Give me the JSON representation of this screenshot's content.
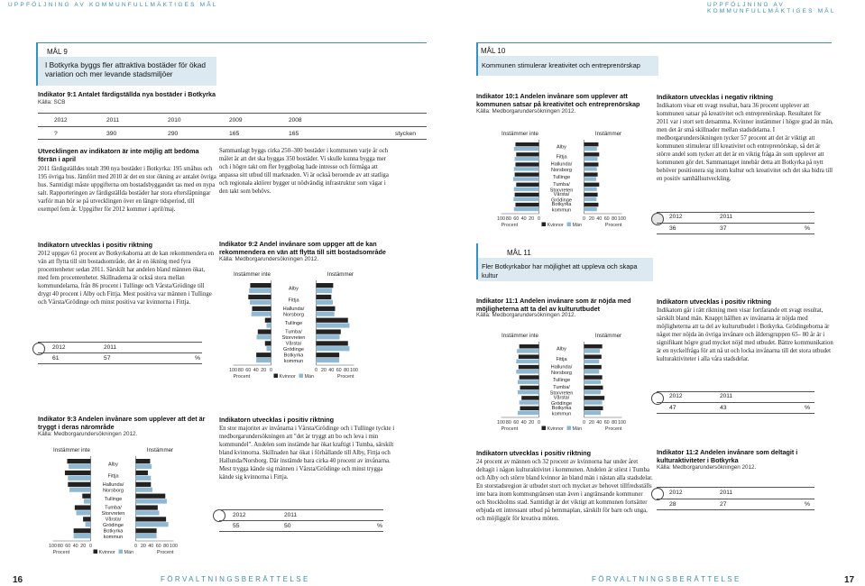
{
  "running_header_left": "UPPFÖLJNING AV KOMMUNFULLMÄKTIGES MÅL",
  "running_header_right": "UPPFÖLJNING AV KOMMUNFULLMÄKTIGES MÅL",
  "running_footer_left": "FÖRVALTNINGSBERÄTTELSE",
  "running_footer_right": "FÖRVALTNINGSBERÄTTELSE",
  "page_left": "16",
  "page_right": "17",
  "mal9": {
    "label": "MÅL 9",
    "text": "I Botkyrka byggs fler attraktiva bostäder för ökad variation och mer levande stadsmiljöer"
  },
  "mal10": {
    "label": "MÅL 10",
    "text": "Kommunen stimulerar kreativitet och entreprenörskap"
  },
  "mal11": {
    "label": "MÅL 11",
    "text": "Fler Botkyrkabor har möjlighet att uppleva och skapa kultur"
  },
  "ind91": {
    "title": "Indikator 9:1 Antalet färdigställda nya bostäder i Botkyrka",
    "source": "Källa: SCB",
    "years": [
      "2012",
      "2011",
      "2010",
      "2009",
      "2008"
    ],
    "values": [
      "?",
      "390",
      "290",
      "165",
      "165"
    ],
    "unit": "stycken",
    "status_heading": "Utvecklingen av indikatorn är inte möjlig att bedöma förrän i april",
    "text1": "2011 färdigställdes totalt 390 nya bostäder i Botkyrka: 195 småhus och 195 övriga hus. Jämfört med 2010 är det en stor ökning av antalet övriga hus. Samtidigt måste uppgifterna om bostadsbyggandet tas med en nypa salt. Rapporteringen av färdigställda bostäder har stora eftersläpningar varför man bör se på utvecklingen över en längre tidsperiod, till exempel fem år. Uppgifter för 2012 kommer i april/maj.",
    "text2": "Sammanlagt byggs cirka 250–300 bostäder i kommunen varje år och målet är att det ska byggas 350 bostäder. Vi skulle kunna bygga mer och i högre takt om fler byggbolag hade intresse och förmåga att anpassa sitt utbud till marknaden. Vi är också beroende av att statliga och regionala aktörer bygger ut nödvändig infrastruktur som vägar i den takt som behövs."
  },
  "ind92_status": {
    "heading": "Indikatorn utvecklas i positiv riktning",
    "text": "2012 uppgav 61 procent av Botkyrkaborna att de kan rekommendera en vän att flytta till sitt bostadsområde, det är en ökning med fyra procentenheter sedan 2011. Särskilt har andelen bland männen ökat, med fem procentenheter. Skillnaderna är också stora mellan kommundelarna, från 86 procent i Tullinge och Vårsta/Grödinge till drygt 40 procent i Alby och Fittja. Mest positiva var männen i Tullinge och Vårsta/Grödinge och minst positiva var kvinnorna i Fittja.",
    "years": [
      "2012",
      "2011"
    ],
    "values": [
      "61",
      "57"
    ],
    "unit": "%"
  },
  "ind92": {
    "title": "Indikator 9:2 Andel invånare som uppger att de kan rekommendera en vän att flytta till sitt bostadsområde",
    "source": "Källa: Medborgarundersökningen 2012.",
    "left_head": "Instämmer inte",
    "right_head": "Instämmer"
  },
  "ind93": {
    "title": "Indikator 9:3 Andelen invånare som upplever att det är tryggt i deras närområde",
    "source": "Källa: Medborgarundersökningen 2012.",
    "left_head": "Instämmer inte",
    "right_head": "Instämmer"
  },
  "ind93_status": {
    "heading": "Indikatorn utvecklas i positiv riktning",
    "text": "En stor majoritet av invånarna i Vårsta/Grödinge och i Tullinge tyckte i medborgarundersökningen att \"det är tryggt att bo och leva i min kommundel\". Andelen som instämde har ökat kraftigt i Tumba, särskilt bland kvinnorna. Skillnaden har ökat i förhållande till Alby, Fittja och Hallunda/Norsborg. Där instämde bara cirka 40 procent av invånarna. Mest trygga kände sig männen i Vårsta/Grödinge och minst trygga kände sig kvinnorna i Fittja.",
    "years": [
      "2012",
      "2011"
    ],
    "values": [
      "55",
      "50"
    ],
    "unit": "%"
  },
  "ind101": {
    "title": "Indikator 10:1 Andelen invånare som upplever att kommunen satsar på kreativitet och entreprenörskap",
    "source": "Källa: Medborgarundersökningen 2012.",
    "left_head": "Instämmer inte",
    "right_head": "Instämmer"
  },
  "ind101_status": {
    "heading": "Indikatorn utvecklas i negativ riktning",
    "text": "Indikatorn visar ett svagt resultat, bara 36 procent upplever att kommunen satsar på kreativitet och entreprenörskap. Resultatet för 2011 var i stort sett detsamma. Kvinnor instämmer i högre grad än män, men det är små skillnader mellan stadsdelarna. I medborgarundersökningen tycker 57 procent att det är viktigt att kommunen stimulerar till kreativitet och entreprenörskap, så det är större andel som tycker att det är en viktig fråga än som upplever att kommunen gör det. Sammantaget innebär detta att Botkyrka på nytt behöver positionera sig inom kultur och kreativitet och det ska bidra till en positiv samhällsutveckling.",
    "years": [
      "2012",
      "2011"
    ],
    "values": [
      "36",
      "37"
    ],
    "unit": "%"
  },
  "ind111": {
    "title": "Indikator 11:1 Andelen invånare som är nöjda med möjligheterna att ta del av kulturutbudet",
    "source": "Källa: Medborgarundersökningen 2012.",
    "left_head": "Instämmer inte",
    "right_head": "Instämmer"
  },
  "ind111_status": {
    "heading": "Indikatorn utvecklas i positiv riktning",
    "text": "Indikatorn går i rätt riktning men visar fortfarande ett svagt resultat, särskilt bland män. Knappt hälften av invånarna är nöjda med möjligheterna att ta del av kulturutbudet i Botkyrka. Grödingeborna är något mer nöjda än övriga invånare och åldersgruppen 65– 80 år är i signifikant högre grad mycket nöjd med utbudet. Bättre kommunikation är en nyckelfråga för att nå ut och locka invånarna till det stora utbudet kulturaktiviteter i alla våra stadsdelar.",
    "years": [
      "2012",
      "2011"
    ],
    "values": [
      "47",
      "43"
    ],
    "unit": "%"
  },
  "ind112_status": {
    "heading": "Indikatorn utvecklas i positiv riktning",
    "text": "24 procent av männen och 32 procent av kvinnorna har under året deltagit i någon kulturaktivitet i kommunen. Andelen är störst i Tumba och Alby och större bland kvinnor än bland män i nästan alla stadsdelar. En storstadsregion är utbudet stort och mycket av behovet tillfredsställs inte bara inom kommungränsen utan även i angränsande kommuner och Stockholms stad. Samtidigt är det viktigt att kommunen fortsätter erbjuda ett intressant utbud på hemmaplan, särskilt för barn och unga, och möjliggör för kreativa möten."
  },
  "ind112": {
    "title": "Indikator 11:2 Andelen invånare som deltagit i kulturaktiviteter i Botkyrka",
    "source": "Källa: Medborgarundersökningen 2012.",
    "years": [
      "2012",
      "2011"
    ],
    "values": [
      "28",
      "27"
    ],
    "unit": "%"
  },
  "chart_common": {
    "categories": [
      "Alby",
      "Fittja",
      "Hallunda/ Norsborg",
      "Tullinge",
      "Tumba/ Storvreten",
      "Vårsta/ Grödinge",
      "Botkyrka kommun"
    ],
    "ticks_left": [
      "100",
      "80",
      "60",
      "40",
      "20",
      "0"
    ],
    "ticks_right": [
      "0",
      "20",
      "40",
      "60",
      "80",
      "100"
    ],
    "axis_label": "Procent",
    "legend": [
      "Kvinnor",
      "Män"
    ]
  },
  "chart_data": [
    {
      "type": "bar",
      "id": "ind92",
      "categories": [
        "Alby",
        "Fittja",
        "Hallunda/Norsborg",
        "Tullinge",
        "Tumba/Storvreten",
        "Vårsta/Grödinge",
        "Botkyrka kommun"
      ],
      "series": [
        {
          "name": "Kvinnor",
          "values": [
            45,
            40,
            50,
            84,
            65,
            84,
            61
          ]
        },
        {
          "name": "Män",
          "values": [
            42,
            44,
            48,
            88,
            62,
            88,
            61
          ]
        }
      ],
      "xlim": [
        0,
        100
      ]
    },
    {
      "type": "bar",
      "id": "ind93",
      "categories": [
        "Alby",
        "Fittja",
        "Hallunda/Norsborg",
        "Tullinge",
        "Tumba/Storvreten",
        "Vårsta/Grödinge",
        "Botkyrka kommun"
      ],
      "series": [
        {
          "name": "Kvinnor",
          "values": [
            38,
            32,
            40,
            78,
            58,
            80,
            55
          ]
        },
        {
          "name": "Män",
          "values": [
            42,
            40,
            44,
            82,
            62,
            86,
            55
          ]
        }
      ],
      "xlim": [
        0,
        100
      ]
    },
    {
      "type": "bar",
      "id": "ind101",
      "categories": [
        "Alby",
        "Fittja",
        "Hallunda/Norsborg",
        "Tullinge",
        "Tumba/Storvreten",
        "Vårsta/Grödinge",
        "Botkyrka kommun"
      ],
      "series": [
        {
          "name": "Kvinnor",
          "values": [
            38,
            40,
            38,
            36,
            40,
            36,
            38
          ]
        },
        {
          "name": "Män",
          "values": [
            34,
            36,
            34,
            32,
            34,
            33,
            34
          ]
        }
      ],
      "xlim": [
        0,
        100
      ]
    },
    {
      "type": "bar",
      "id": "ind111",
      "categories": [
        "Alby",
        "Fittja",
        "Hallunda/Norsborg",
        "Tullinge",
        "Tumba/Storvreten",
        "Vårsta/Grödinge",
        "Botkyrka kommun"
      ],
      "series": [
        {
          "name": "Kvinnor",
          "values": [
            48,
            46,
            46,
            48,
            50,
            54,
            50
          ]
        },
        {
          "name": "Män",
          "values": [
            42,
            40,
            40,
            44,
            44,
            48,
            44
          ]
        }
      ],
      "xlim": [
        0,
        100
      ]
    }
  ]
}
